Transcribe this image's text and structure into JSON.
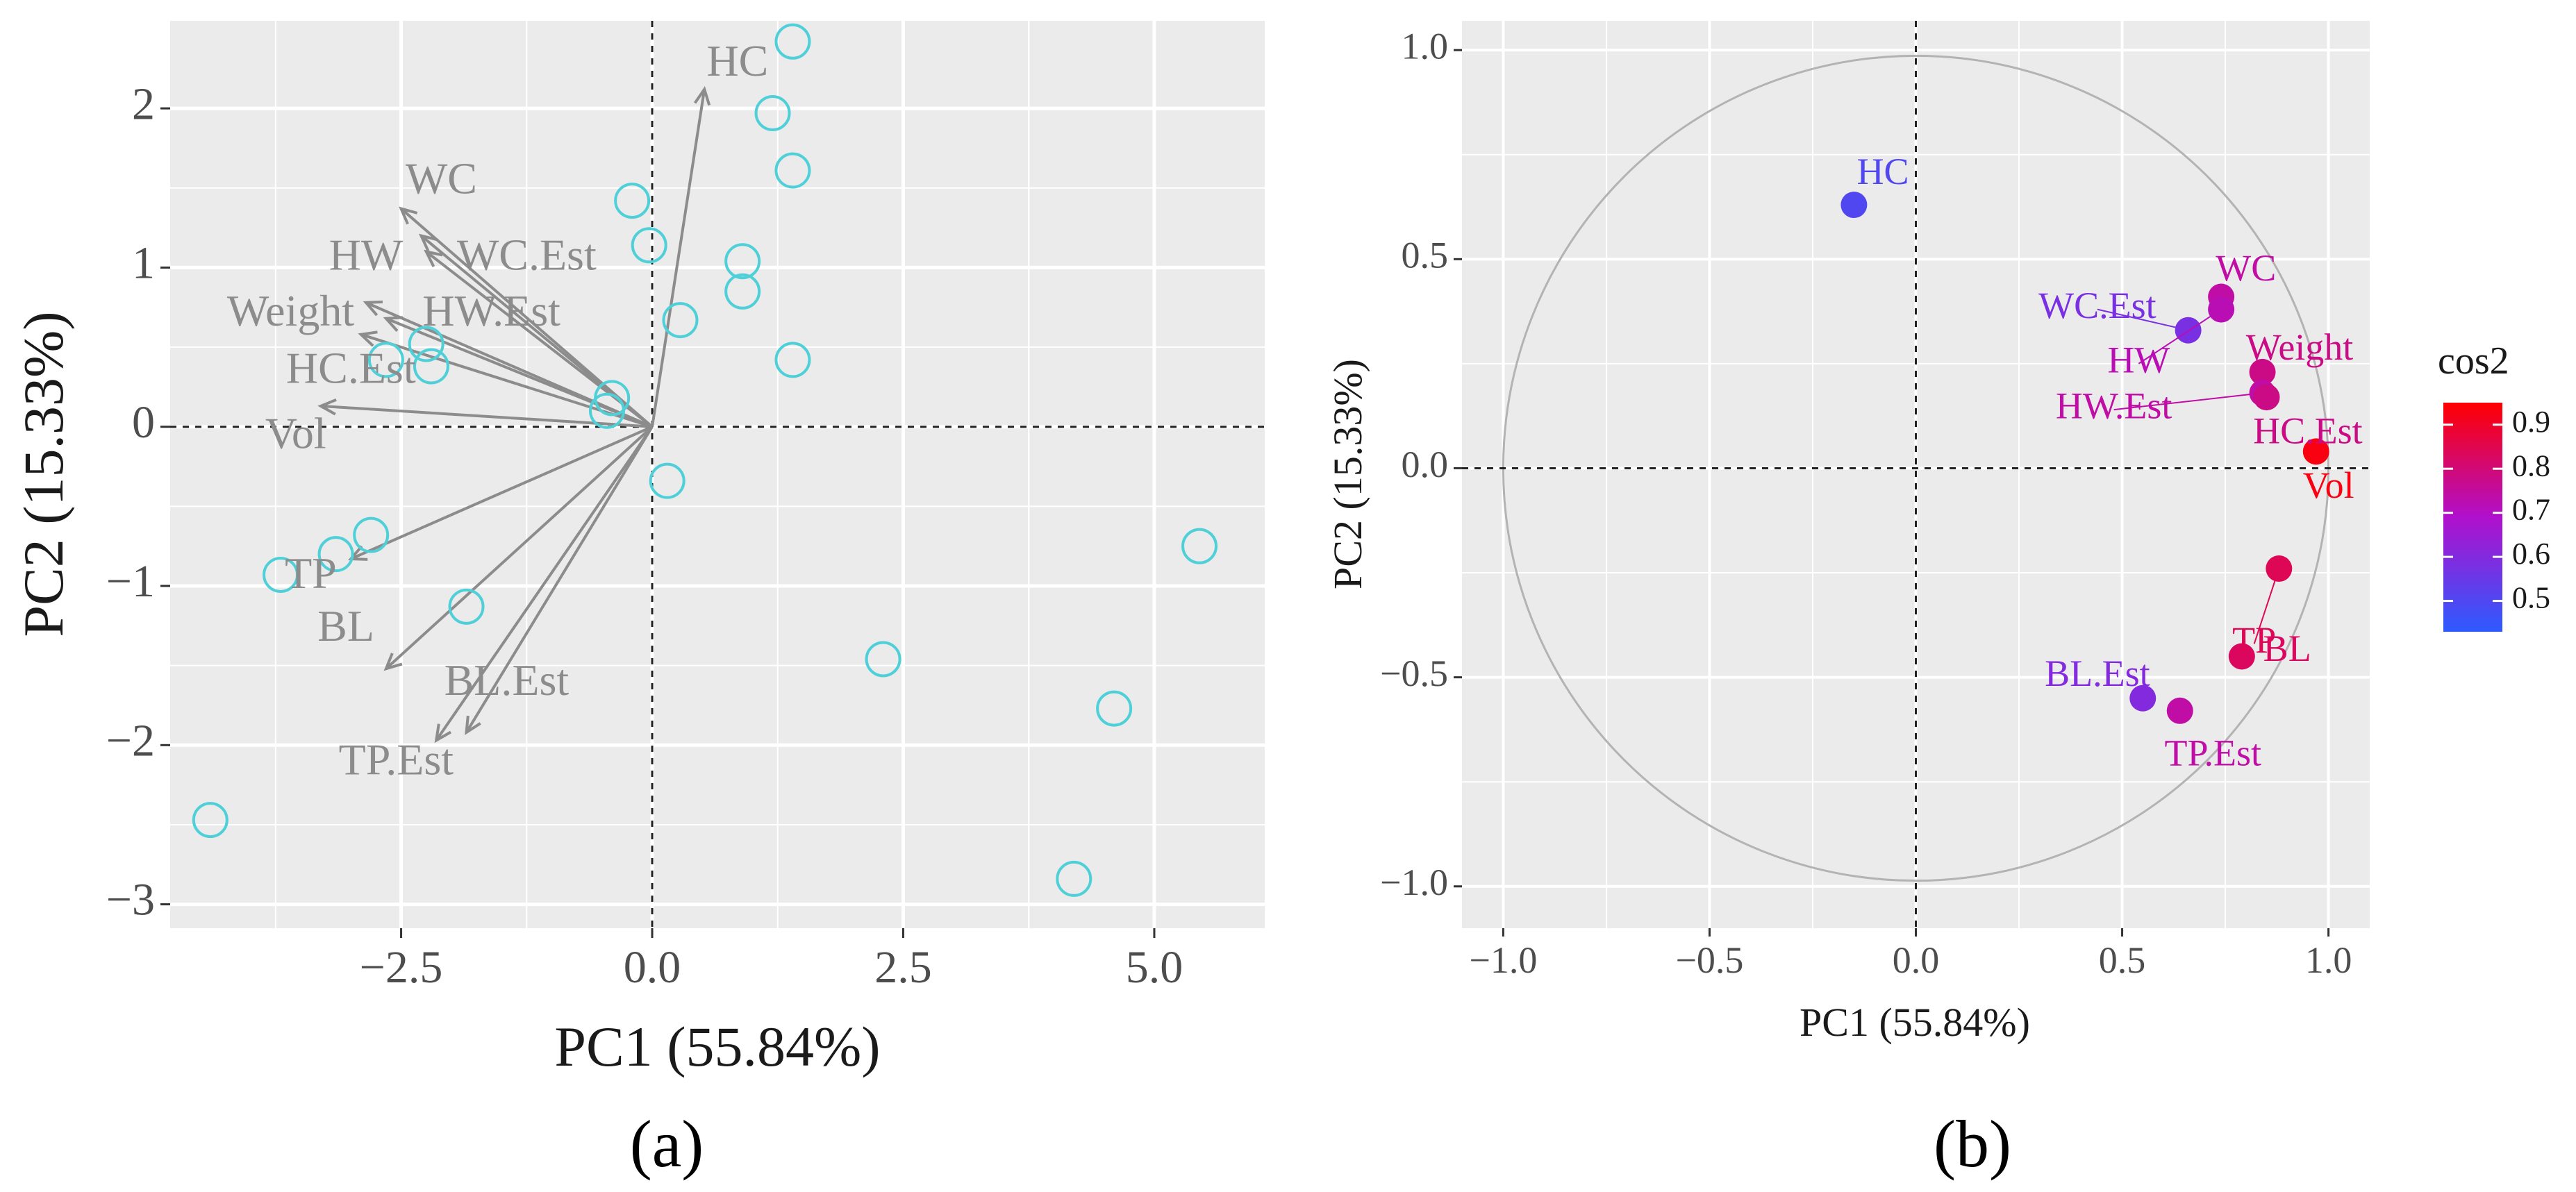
{
  "chart_data": [
    {
      "id": "a",
      "type": "scatter",
      "subtype": "pca-biplot",
      "panel_label": "(a)",
      "xlabel": "PC1 (55.84%)",
      "ylabel": "PC2 (15.33%)",
      "xlim": [
        -4.8,
        6.1
      ],
      "ylim": [
        -3.15,
        2.55
      ],
      "xticks": [
        -2.5,
        0.0,
        2.5,
        5.0
      ],
      "xtick_labels": [
        "−2.5",
        "0.0",
        "2.5",
        "5.0"
      ],
      "yticks": [
        -3,
        -2,
        -1,
        0,
        1,
        2
      ],
      "ytick_labels": [
        "−3",
        "−2",
        "−1",
        "0",
        "1",
        "2"
      ],
      "grid": true,
      "colors": {
        "points": "#4fd0d8",
        "arrows": "#8c8c8c",
        "panel_bg": "#ebebeb"
      },
      "points": [
        {
          "x": 1.4,
          "y": 2.42
        },
        {
          "x": 1.2,
          "y": 1.97
        },
        {
          "x": 1.4,
          "y": 1.61
        },
        {
          "x": -0.2,
          "y": 1.42
        },
        {
          "x": -0.03,
          "y": 1.14
        },
        {
          "x": 0.9,
          "y": 1.04
        },
        {
          "x": 0.9,
          "y": 0.85
        },
        {
          "x": 0.28,
          "y": 0.67
        },
        {
          "x": 1.4,
          "y": 0.42
        },
        {
          "x": -2.25,
          "y": 0.52
        },
        {
          "x": -2.65,
          "y": 0.42
        },
        {
          "x": -2.2,
          "y": 0.38
        },
        {
          "x": -0.4,
          "y": 0.18
        },
        {
          "x": -0.45,
          "y": 0.1
        },
        {
          "x": 0.15,
          "y": -0.34
        },
        {
          "x": -2.8,
          "y": -0.68
        },
        {
          "x": -3.15,
          "y": -0.8
        },
        {
          "x": -3.7,
          "y": -0.93
        },
        {
          "x": -1.85,
          "y": -1.13
        },
        {
          "x": 5.45,
          "y": -0.75
        },
        {
          "x": 2.3,
          "y": -1.46
        },
        {
          "x": 4.6,
          "y": -1.77
        },
        {
          "x": -4.4,
          "y": -2.47
        },
        {
          "x": 4.2,
          "y": -2.84
        }
      ],
      "arrows": [
        {
          "name": "HC",
          "x": 0.52,
          "y": 2.12,
          "label_x": 0.85,
          "label_y": 2.27
        },
        {
          "name": "WC",
          "x": -2.5,
          "y": 1.37,
          "label_x": -2.1,
          "label_y": 1.53
        },
        {
          "name": "HW",
          "x": -2.3,
          "y": 1.2,
          "label_x": -2.85,
          "label_y": 1.05
        },
        {
          "name": "WC.Est",
          "x": -2.25,
          "y": 1.1,
          "label_x": -1.25,
          "label_y": 1.05
        },
        {
          "name": "Weight",
          "x": -2.85,
          "y": 0.78,
          "label_x": -3.6,
          "label_y": 0.7
        },
        {
          "name": "HW.Est",
          "x": -2.65,
          "y": 0.68,
          "label_x": -1.6,
          "label_y": 0.7
        },
        {
          "name": "HC.Est",
          "x": -2.9,
          "y": 0.58,
          "label_x": -3.0,
          "label_y": 0.34
        },
        {
          "name": "Vol",
          "x": -3.3,
          "y": 0.13,
          "label_x": -3.55,
          "label_y": -0.07
        },
        {
          "name": "TP",
          "x": -3.0,
          "y": -0.83,
          "label_x": -3.4,
          "label_y": -0.95
        },
        {
          "name": "BL",
          "x": -2.65,
          "y": -1.52,
          "label_x": -3.05,
          "label_y": -1.28
        },
        {
          "name": "BL.Est",
          "x": -1.85,
          "y": -1.92,
          "label_x": -1.45,
          "label_y": -1.62
        },
        {
          "name": "TP.Est",
          "x": -2.15,
          "y": -1.97,
          "label_x": -2.55,
          "label_y": -2.12
        }
      ]
    },
    {
      "id": "b",
      "type": "scatter",
      "subtype": "pca-variable-correlation-circle",
      "panel_label": "(b)",
      "xlabel": "PC1 (55.84%)",
      "ylabel": "PC2 (15.33%)",
      "xlim": [
        -1.1,
        1.1
      ],
      "ylim": [
        -1.1,
        1.07
      ],
      "xticks": [
        -1.0,
        -0.5,
        0.0,
        0.5,
        1.0
      ],
      "xtick_labels": [
        "−1.0",
        "−0.5",
        "0.0",
        "0.5",
        "1.0"
      ],
      "yticks": [
        -1.0,
        -0.5,
        0.0,
        0.5,
        1.0
      ],
      "ytick_labels": [
        "−1.0",
        "−0.5",
        "0.0",
        "0.5",
        "1.0"
      ],
      "grid": true,
      "unit_circle": true,
      "colors": {
        "panel_bg": "#ebebeb",
        "circle": "#b3b3b3"
      },
      "color_scale": {
        "title": "cos2",
        "min": 0.43,
        "max": 0.95,
        "low_color": "#2d5bff",
        "mid_color": "#b010cc",
        "high_color": "#ff0000",
        "ticks": [
          0.5,
          0.6,
          0.7,
          0.8,
          0.9
        ],
        "tick_labels": [
          "0.5",
          "0.6",
          "0.7",
          "0.8",
          "0.9"
        ]
      },
      "variables": [
        {
          "name": "HC",
          "x": -0.15,
          "y": 0.63,
          "cos2": 0.5,
          "label_x": -0.08,
          "label_y": 0.7
        },
        {
          "name": "WC",
          "x": 0.74,
          "y": 0.41,
          "cos2": 0.74,
          "label_x": 0.8,
          "label_y": 0.47
        },
        {
          "name": "WC.Est",
          "x": 0.66,
          "y": 0.33,
          "cos2": 0.58,
          "label_x": 0.44,
          "label_y": 0.38
        },
        {
          "name": "HW",
          "x": 0.74,
          "y": 0.38,
          "cos2": 0.72,
          "label_x": 0.54,
          "label_y": 0.25
        },
        {
          "name": "Weight",
          "x": 0.84,
          "y": 0.23,
          "cos2": 0.78,
          "label_x": 0.93,
          "label_y": 0.28
        },
        {
          "name": "HW.Est",
          "x": 0.84,
          "y": 0.18,
          "cos2": 0.74,
          "label_x": 0.48,
          "label_y": 0.14
        },
        {
          "name": "HC.Est",
          "x": 0.85,
          "y": 0.17,
          "cos2": 0.78,
          "label_x": 0.95,
          "label_y": 0.08
        },
        {
          "name": "Vol",
          "x": 0.97,
          "y": 0.04,
          "cos2": 0.93,
          "label_x": 1.0,
          "label_y": -0.05
        },
        {
          "name": "TP",
          "x": 0.88,
          "y": -0.24,
          "cos2": 0.84,
          "label_x": 0.82,
          "label_y": -0.42
        },
        {
          "name": "BL",
          "x": 0.79,
          "y": -0.45,
          "cos2": 0.83,
          "label_x": 0.9,
          "label_y": -0.44
        },
        {
          "name": "BL.Est",
          "x": 0.55,
          "y": -0.55,
          "cos2": 0.6,
          "label_x": 0.44,
          "label_y": -0.5
        },
        {
          "name": "TP.Est",
          "x": 0.64,
          "y": -0.58,
          "cos2": 0.74,
          "label_x": 0.72,
          "label_y": -0.69
        }
      ]
    }
  ]
}
